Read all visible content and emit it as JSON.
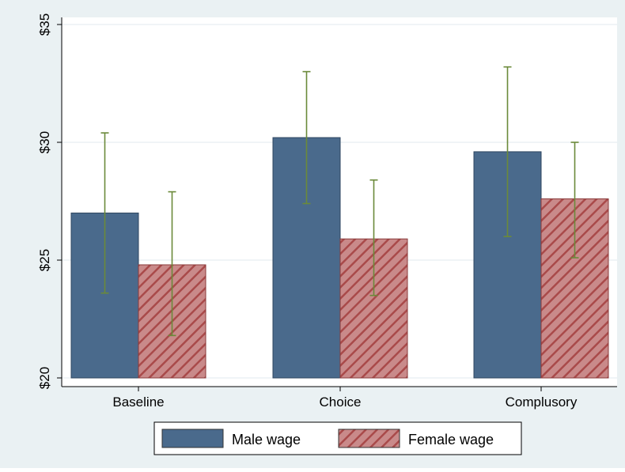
{
  "chart_data": {
    "type": "bar",
    "categories": [
      "Baseline",
      "Choice",
      "Complusory"
    ],
    "series": [
      {
        "name": "Male wage",
        "values": [
          27.0,
          30.2,
          29.6
        ],
        "ci_low": [
          23.6,
          27.4,
          26.0
        ],
        "ci_high": [
          30.4,
          33.0,
          33.2
        ],
        "color": "#4a6a8c",
        "pattern": "solid"
      },
      {
        "name": "Female wage",
        "values": [
          24.8,
          25.9,
          27.6
        ],
        "ci_low": [
          21.8,
          23.5,
          25.1
        ],
        "ci_high": [
          27.9,
          28.4,
          30.0
        ],
        "color": "#c98a8a",
        "pattern": "hatch",
        "hatch_color": "#a94a4a"
      }
    ],
    "yticks": [
      {
        "value": 20,
        "label": "$20"
      },
      {
        "value": 25,
        "label": "$25"
      },
      {
        "value": 30,
        "label": "$30"
      },
      {
        "value": 35,
        "label": "$35"
      }
    ],
    "ylim": [
      20,
      35
    ],
    "grid": true,
    "legend_position": "bottom",
    "errorbar_color": "#6b8a3a",
    "background_outer": "#eaf1f3",
    "background_plot": "#ffffff"
  }
}
